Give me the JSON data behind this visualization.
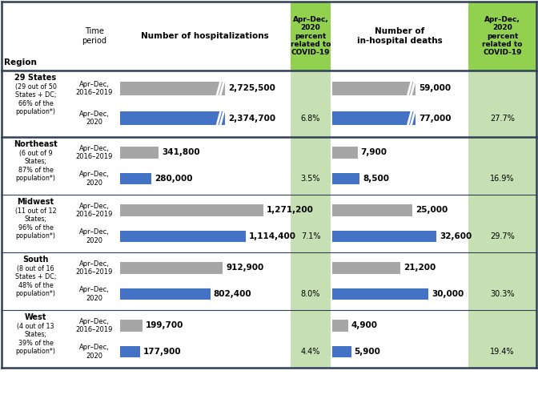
{
  "regions": [
    {
      "name": "29 States",
      "subtitle": "(29 out of 50\nStates + DC;\n66% of the\npopulation*)",
      "hosp_2016": 2725500,
      "hosp_2016_label": "2,725,500",
      "hosp_2020": 2374700,
      "hosp_2020_label": "2,374,700",
      "hosp_covid_pct": "6.8%",
      "deaths_2016": 59000,
      "deaths_2016_label": "59,000",
      "deaths_2020": 77000,
      "deaths_2020_label": "77,000",
      "deaths_covid_pct": "27.7%",
      "hosp_truncated": true,
      "deaths_truncated": true
    },
    {
      "name": "Northeast",
      "subtitle": "(6 out of 9\nStates;\n87% of the\npopulation*)",
      "hosp_2016": 341800,
      "hosp_2016_label": "341,800",
      "hosp_2020": 280000,
      "hosp_2020_label": "280,000",
      "hosp_covid_pct": "3.5%",
      "deaths_2016": 7900,
      "deaths_2016_label": "7,900",
      "deaths_2020": 8500,
      "deaths_2020_label": "8,500",
      "deaths_covid_pct": "16.9%",
      "hosp_truncated": false,
      "deaths_truncated": false
    },
    {
      "name": "Midwest",
      "subtitle": "(11 out of 12\nStates;\n96% of the\npopulation*)",
      "hosp_2016": 1271200,
      "hosp_2016_label": "1,271,200",
      "hosp_2020": 1114400,
      "hosp_2020_label": "1,114,400",
      "hosp_covid_pct": "7.1%",
      "deaths_2016": 25000,
      "deaths_2016_label": "25,000",
      "deaths_2020": 32600,
      "deaths_2020_label": "32,600",
      "deaths_covid_pct": "29.7%",
      "hosp_truncated": false,
      "deaths_truncated": false
    },
    {
      "name": "South",
      "subtitle": "(8 out of 16\nStates + DC;\n48% of the\npopulation*)",
      "hosp_2016": 912900,
      "hosp_2016_label": "912,900",
      "hosp_2020": 802400,
      "hosp_2020_label": "802,400",
      "hosp_covid_pct": "8.0%",
      "deaths_2016": 21200,
      "deaths_2016_label": "21,200",
      "deaths_2020": 30000,
      "deaths_2020_label": "30,000",
      "deaths_covid_pct": "30.3%",
      "hosp_truncated": false,
      "deaths_truncated": false
    },
    {
      "name": "West",
      "subtitle": "(4 out of 13\nStates;\n39% of the\npopulation*)",
      "hosp_2016": 199700,
      "hosp_2016_label": "199,700",
      "hosp_2020": 177900,
      "hosp_2020_label": "177,900",
      "hosp_covid_pct": "4.4%",
      "deaths_2016": 4900,
      "deaths_2016_label": "4,900",
      "deaths_2020": 5900,
      "deaths_2020_label": "5,900",
      "deaths_covid_pct": "19.4%",
      "hosp_truncated": false,
      "deaths_truncated": false
    }
  ],
  "color_gray": "#a6a6a6",
  "color_blue": "#4472c4",
  "color_green_header": "#92d050",
  "color_green_cell": "#c6e0b4",
  "line_color": "#2e4057",
  "hosp_max": 1500000,
  "deaths_max": 42000
}
